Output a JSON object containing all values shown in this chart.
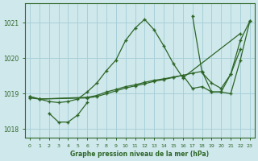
{
  "xlabel": "Graphe pression niveau de la mer (hPa)",
  "background_color": "#cfe8ec",
  "grid_color": "#a8d0d8",
  "line_color": "#2d6627",
  "ylim": [
    1017.75,
    1021.55
  ],
  "yticks": [
    1018,
    1019,
    1020,
    1021
  ],
  "xticks": [
    0,
    1,
    2,
    3,
    4,
    5,
    6,
    7,
    8,
    9,
    10,
    11,
    12,
    13,
    14,
    15,
    16,
    17,
    18,
    19,
    20,
    21,
    22,
    23
  ],
  "s1_x": [
    0,
    1,
    2,
    3,
    4,
    5,
    6,
    7,
    8,
    9,
    10,
    11,
    12,
    13,
    14,
    15,
    16,
    22
  ],
  "s1_y": [
    1018.92,
    1018.85,
    1018.78,
    1018.75,
    1018.78,
    1018.85,
    1019.05,
    1019.3,
    1019.65,
    1019.95,
    1020.5,
    1020.85,
    1021.1,
    1020.8,
    1020.35,
    1019.85,
    1019.45,
    1020.7
  ],
  "s2_x": [
    2,
    3,
    4,
    5,
    6
  ],
  "s2_y": [
    1018.45,
    1018.2,
    1018.2,
    1018.4,
    1018.75
  ],
  "s3_x": [
    0,
    1,
    6,
    7,
    8,
    9,
    10,
    11,
    12,
    13,
    14,
    15,
    16,
    17,
    18,
    19,
    20,
    21,
    22
  ],
  "s3_y": [
    1018.92,
    1018.85,
    1018.9,
    1018.95,
    1019.05,
    1019.12,
    1019.2,
    1019.25,
    1019.32,
    1019.38,
    1019.42,
    1019.47,
    1019.52,
    1019.15,
    1019.2,
    1019.05,
    1019.05,
    1019.55,
    1020.25
  ],
  "s4_x": [
    0,
    1,
    6,
    7,
    8,
    9,
    10,
    11,
    12,
    13,
    14,
    15,
    16,
    17,
    18,
    19,
    20,
    21,
    22,
    23
  ],
  "s4_y": [
    1018.88,
    1018.85,
    1018.88,
    1018.92,
    1019.0,
    1019.08,
    1019.16,
    1019.22,
    1019.28,
    1019.35,
    1019.4,
    1019.46,
    1019.52,
    1019.58,
    1019.63,
    1019.05,
    1019.05,
    1019.0,
    1019.95,
    1021.05
  ],
  "s5_x": [
    17,
    18,
    19,
    20,
    21,
    22,
    23
  ],
  "s5_y": [
    1021.2,
    1019.6,
    1019.3,
    1019.15,
    1019.55,
    1020.5,
    1021.05
  ]
}
